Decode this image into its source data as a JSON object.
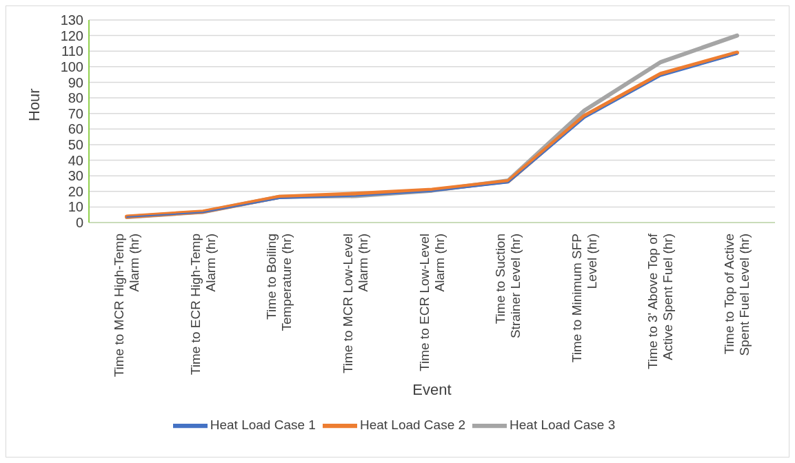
{
  "chart_data": {
    "type": "line",
    "xlabel": "Event",
    "ylabel": "Hour",
    "categories": [
      "Time to MCR High-Temp Alarm (hr)",
      "Time to ECR High-Temp Alarm (hr)",
      "Time to Boiling Temperature (hr)",
      "Time to MCR Low-Level Alarm (hr)",
      "Time to ECR Low-Level Alarm (hr)",
      "Time to Suction Strainer Level (hr)",
      "Time to Minimum SFP Level (hr)",
      "Time to 3' Above Top of Active Spent Fuel (hr)",
      "Time to Top of Active Spent Fuel Level (hr)"
    ],
    "series": [
      {
        "name": "Heat Load Case 1",
        "color": "#4472c4",
        "values": [
          3.5,
          6.5,
          15.5,
          17,
          20,
          25.5,
          67,
          94,
          108
        ]
      },
      {
        "name": "Heat Load Case 2",
        "color": "#ed7d31",
        "values": [
          3.8,
          7,
          16.5,
          18.5,
          21,
          26.5,
          68.5,
          95.5,
          109
        ]
      },
      {
        "name": "Heat Load Case 3",
        "color": "#a5a5a5",
        "values": [
          3.5,
          6.8,
          16.5,
          17,
          20.5,
          27,
          72,
          103,
          120
        ]
      }
    ],
    "ylim": [
      0,
      130
    ],
    "yticks": [
      0,
      10,
      20,
      30,
      40,
      50,
      60,
      70,
      80,
      90,
      100,
      110,
      120,
      130
    ],
    "grid": "y",
    "legend": "bottom",
    "marker": "none",
    "line_style": "solid"
  }
}
